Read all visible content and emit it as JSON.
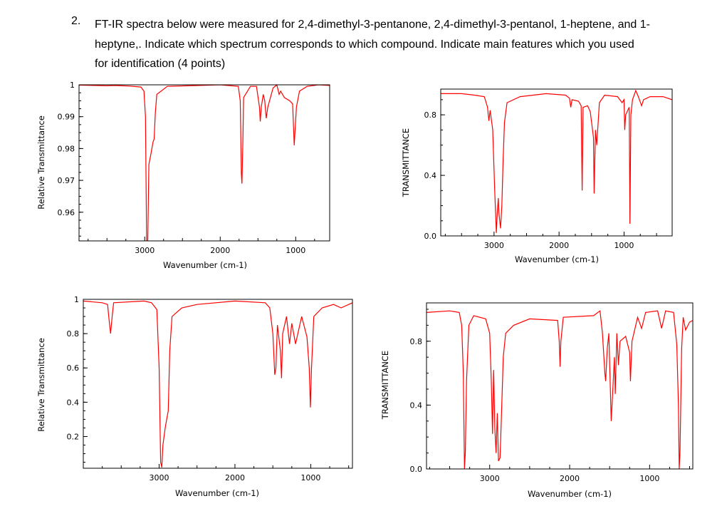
{
  "question": {
    "number": "2.",
    "text": "FT-IR spectra below were measured for 2,4-dimethyl-3-pentanone, 2,4-dimethyl-3-pentanol, 1-heptene, and 1-heptyne,. Indicate which spectrum corresponds to which compound. Indicate main features which you used for identification (4 points)"
  },
  "colors": {
    "line": "#ff0000",
    "axis": "#000000"
  },
  "chart_data": [
    {
      "type": "line",
      "title": "",
      "xlabel": "Wavenumber (cm-1)",
      "ylabel": "Relative Transmittance",
      "xlim": [
        3870,
        550
      ],
      "ylim": [
        0.951,
        1.0
      ],
      "xticks": [
        3000,
        2000,
        1000
      ],
      "xtick_labels": [
        "3000",
        "2000",
        "1000"
      ],
      "yticks": [
        1,
        0.99,
        0.98,
        0.97,
        0.96
      ],
      "ytick_labels": [
        "1",
        "0.99",
        "0.98",
        "0.97",
        "0.96"
      ],
      "grid": false,
      "points": [
        [
          3870,
          0.9999
        ],
        [
          3500,
          0.9997
        ],
        [
          3400,
          0.9998
        ],
        [
          3200,
          0.9996
        ],
        [
          3050,
          0.9993
        ],
        [
          3010,
          0.998
        ],
        [
          2990,
          0.99
        ],
        [
          2975,
          0.951
        ],
        [
          2960,
          0.951
        ],
        [
          2945,
          0.975
        ],
        [
          2920,
          0.978
        ],
        [
          2890,
          0.982
        ],
        [
          2875,
          0.983
        ],
        [
          2860,
          0.991
        ],
        [
          2840,
          0.997
        ],
        [
          2700,
          0.9995
        ],
        [
          2000,
          1.0
        ],
        [
          1760,
          0.9995
        ],
        [
          1735,
          0.995
        ],
        [
          1720,
          0.972
        ],
        [
          1712,
          0.969
        ],
        [
          1700,
          0.982
        ],
        [
          1690,
          0.996
        ],
        [
          1600,
          0.9995
        ],
        [
          1520,
          0.9995
        ],
        [
          1480,
          0.993
        ],
        [
          1470,
          0.9885
        ],
        [
          1455,
          0.993
        ],
        [
          1430,
          0.997
        ],
        [
          1410,
          0.995
        ],
        [
          1390,
          0.9895
        ],
        [
          1370,
          0.993
        ],
        [
          1300,
          0.999
        ],
        [
          1250,
          1.0
        ],
        [
          1220,
          0.997
        ],
        [
          1200,
          0.998
        ],
        [
          1150,
          0.996
        ],
        [
          1080,
          0.995
        ],
        [
          1040,
          0.994
        ],
        [
          1020,
          0.981
        ],
        [
          1005,
          0.987
        ],
        [
          990,
          0.993
        ],
        [
          950,
          0.998
        ],
        [
          850,
          0.9995
        ],
        [
          700,
          1.0
        ],
        [
          550,
          0.9998
        ]
      ]
    },
    {
      "type": "line",
      "title": "",
      "xlabel": "Wavenumber (cm-1)",
      "ylabel": "TRANSMITTANCE",
      "xlim": [
        3820,
        260
      ],
      "ylim": [
        0.0,
        0.97
      ],
      "xticks": [
        3000,
        2000,
        1000
      ],
      "xtick_labels": [
        "3000",
        "2000",
        "1000"
      ],
      "yticks": [
        0.8,
        0.4,
        0.0
      ],
      "ytick_labels": [
        "0.8",
        "0.4",
        "0.0"
      ],
      "grid": false,
      "points": [
        [
          3820,
          0.94
        ],
        [
          3500,
          0.94
        ],
        [
          3300,
          0.93
        ],
        [
          3150,
          0.92
        ],
        [
          3100,
          0.85
        ],
        [
          3080,
          0.76
        ],
        [
          3060,
          0.83
        ],
        [
          3020,
          0.7
        ],
        [
          2990,
          0.3
        ],
        [
          2965,
          0.02
        ],
        [
          2950,
          0.15
        ],
        [
          2935,
          0.25
        ],
        [
          2925,
          0.15
        ],
        [
          2900,
          0.05
        ],
        [
          2880,
          0.2
        ],
        [
          2860,
          0.5
        ],
        [
          2840,
          0.75
        ],
        [
          2800,
          0.88
        ],
        [
          2600,
          0.92
        ],
        [
          2200,
          0.94
        ],
        [
          1900,
          0.93
        ],
        [
          1840,
          0.91
        ],
        [
          1820,
          0.85
        ],
        [
          1800,
          0.9
        ],
        [
          1700,
          0.89
        ],
        [
          1660,
          0.86
        ],
        [
          1645,
          0.3
        ],
        [
          1630,
          0.85
        ],
        [
          1560,
          0.86
        ],
        [
          1520,
          0.82
        ],
        [
          1470,
          0.65
        ],
        [
          1460,
          0.28
        ],
        [
          1440,
          0.7
        ],
        [
          1420,
          0.6
        ],
        [
          1380,
          0.88
        ],
        [
          1300,
          0.93
        ],
        [
          1100,
          0.92
        ],
        [
          1030,
          0.88
        ],
        [
          1000,
          0.9
        ],
        [
          990,
          0.7
        ],
        [
          975,
          0.8
        ],
        [
          920,
          0.85
        ],
        [
          910,
          0.08
        ],
        [
          895,
          0.8
        ],
        [
          870,
          0.9
        ],
        [
          820,
          0.96
        ],
        [
          780,
          0.92
        ],
        [
          730,
          0.86
        ],
        [
          700,
          0.9
        ],
        [
          600,
          0.92
        ],
        [
          400,
          0.92
        ],
        [
          260,
          0.9
        ]
      ]
    },
    {
      "type": "line",
      "title": "",
      "xlabel": "Wavenumber (cm-1)",
      "ylabel": "Relative Transmittance",
      "xlim": [
        4000,
        450
      ],
      "ylim": [
        0.015,
        1.0
      ],
      "xticks": [
        3000,
        2000,
        1000
      ],
      "xtick_labels": [
        "3000",
        "2000",
        "1000"
      ],
      "yticks": [
        1,
        0.8,
        0.6,
        0.4,
        0.2
      ],
      "ytick_labels": [
        "1",
        "0.8",
        "0.6",
        "0.4",
        "0.2"
      ],
      "grid": false,
      "points": [
        [
          4000,
          0.99
        ],
        [
          3750,
          0.98
        ],
        [
          3680,
          0.97
        ],
        [
          3660,
          0.88
        ],
        [
          3640,
          0.8
        ],
        [
          3620,
          0.9
        ],
        [
          3600,
          0.98
        ],
        [
          3200,
          0.99
        ],
        [
          3100,
          0.98
        ],
        [
          3030,
          0.94
        ],
        [
          3000,
          0.6
        ],
        [
          2980,
          0.05
        ],
        [
          2965,
          0.02
        ],
        [
          2950,
          0.15
        ],
        [
          2920,
          0.25
        ],
        [
          2900,
          0.3
        ],
        [
          2880,
          0.35
        ],
        [
          2860,
          0.7
        ],
        [
          2830,
          0.9
        ],
        [
          2700,
          0.95
        ],
        [
          2500,
          0.97
        ],
        [
          2000,
          0.99
        ],
        [
          1600,
          0.98
        ],
        [
          1540,
          0.95
        ],
        [
          1500,
          0.8
        ],
        [
          1475,
          0.56
        ],
        [
          1460,
          0.6
        ],
        [
          1440,
          0.85
        ],
        [
          1400,
          0.7
        ],
        [
          1385,
          0.54
        ],
        [
          1370,
          0.8
        ],
        [
          1320,
          0.9
        ],
        [
          1280,
          0.74
        ],
        [
          1250,
          0.86
        ],
        [
          1200,
          0.74
        ],
        [
          1170,
          0.8
        ],
        [
          1120,
          0.9
        ],
        [
          1050,
          0.78
        ],
        [
          1020,
          0.6
        ],
        [
          1005,
          0.37
        ],
        [
          990,
          0.6
        ],
        [
          960,
          0.9
        ],
        [
          850,
          0.95
        ],
        [
          700,
          0.97
        ],
        [
          600,
          0.95
        ],
        [
          450,
          0.98
        ]
      ]
    },
    {
      "type": "line",
      "title": "",
      "xlabel": "Wavenumber (cm-1)",
      "ylabel": "TRANSMITTANCE",
      "xlim": [
        3790,
        460
      ],
      "ylim": [
        0.0,
        1.04
      ],
      "xticks": [
        3000,
        2000,
        1000
      ],
      "xtick_labels": [
        "3000",
        "2000",
        "1000"
      ],
      "yticks": [
        0.8,
        0.4,
        0.0
      ],
      "ytick_labels": [
        "0.8",
        "0.4",
        "0.0"
      ],
      "grid": false,
      "points": [
        [
          3790,
          0.98
        ],
        [
          3500,
          0.99
        ],
        [
          3380,
          0.98
        ],
        [
          3350,
          0.9
        ],
        [
          3330,
          0.6
        ],
        [
          3315,
          0.0
        ],
        [
          3305,
          0.1
        ],
        [
          3290,
          0.55
        ],
        [
          3260,
          0.9
        ],
        [
          3200,
          0.96
        ],
        [
          3050,
          0.94
        ],
        [
          3000,
          0.85
        ],
        [
          2980,
          0.55
        ],
        [
          2965,
          0.22
        ],
        [
          2950,
          0.62
        ],
        [
          2935,
          0.25
        ],
        [
          2920,
          0.1
        ],
        [
          2905,
          0.35
        ],
        [
          2890,
          0.05
        ],
        [
          2870,
          0.07
        ],
        [
          2855,
          0.3
        ],
        [
          2830,
          0.7
        ],
        [
          2800,
          0.85
        ],
        [
          2700,
          0.9
        ],
        [
          2500,
          0.94
        ],
        [
          2150,
          0.93
        ],
        [
          2130,
          0.8
        ],
        [
          2120,
          0.64
        ],
        [
          2110,
          0.8
        ],
        [
          2080,
          0.95
        ],
        [
          1700,
          0.96
        ],
        [
          1620,
          0.99
        ],
        [
          1590,
          0.85
        ],
        [
          1560,
          0.6
        ],
        [
          1550,
          0.55
        ],
        [
          1530,
          0.75
        ],
        [
          1510,
          0.85
        ],
        [
          1480,
          0.3
        ],
        [
          1460,
          0.5
        ],
        [
          1440,
          0.7
        ],
        [
          1430,
          0.47
        ],
        [
          1410,
          0.85
        ],
        [
          1390,
          0.65
        ],
        [
          1370,
          0.8
        ],
        [
          1300,
          0.83
        ],
        [
          1250,
          0.73
        ],
        [
          1240,
          0.55
        ],
        [
          1220,
          0.8
        ],
        [
          1150,
          0.95
        ],
        [
          1100,
          0.88
        ],
        [
          1050,
          0.98
        ],
        [
          900,
          0.99
        ],
        [
          850,
          0.88
        ],
        [
          800,
          0.99
        ],
        [
          700,
          0.98
        ],
        [
          660,
          0.78
        ],
        [
          640,
          0.4
        ],
        [
          630,
          0.0
        ],
        [
          620,
          0.1
        ],
        [
          600,
          0.75
        ],
        [
          580,
          0.95
        ],
        [
          550,
          0.87
        ],
        [
          500,
          0.92
        ],
        [
          460,
          0.93
        ]
      ]
    }
  ]
}
